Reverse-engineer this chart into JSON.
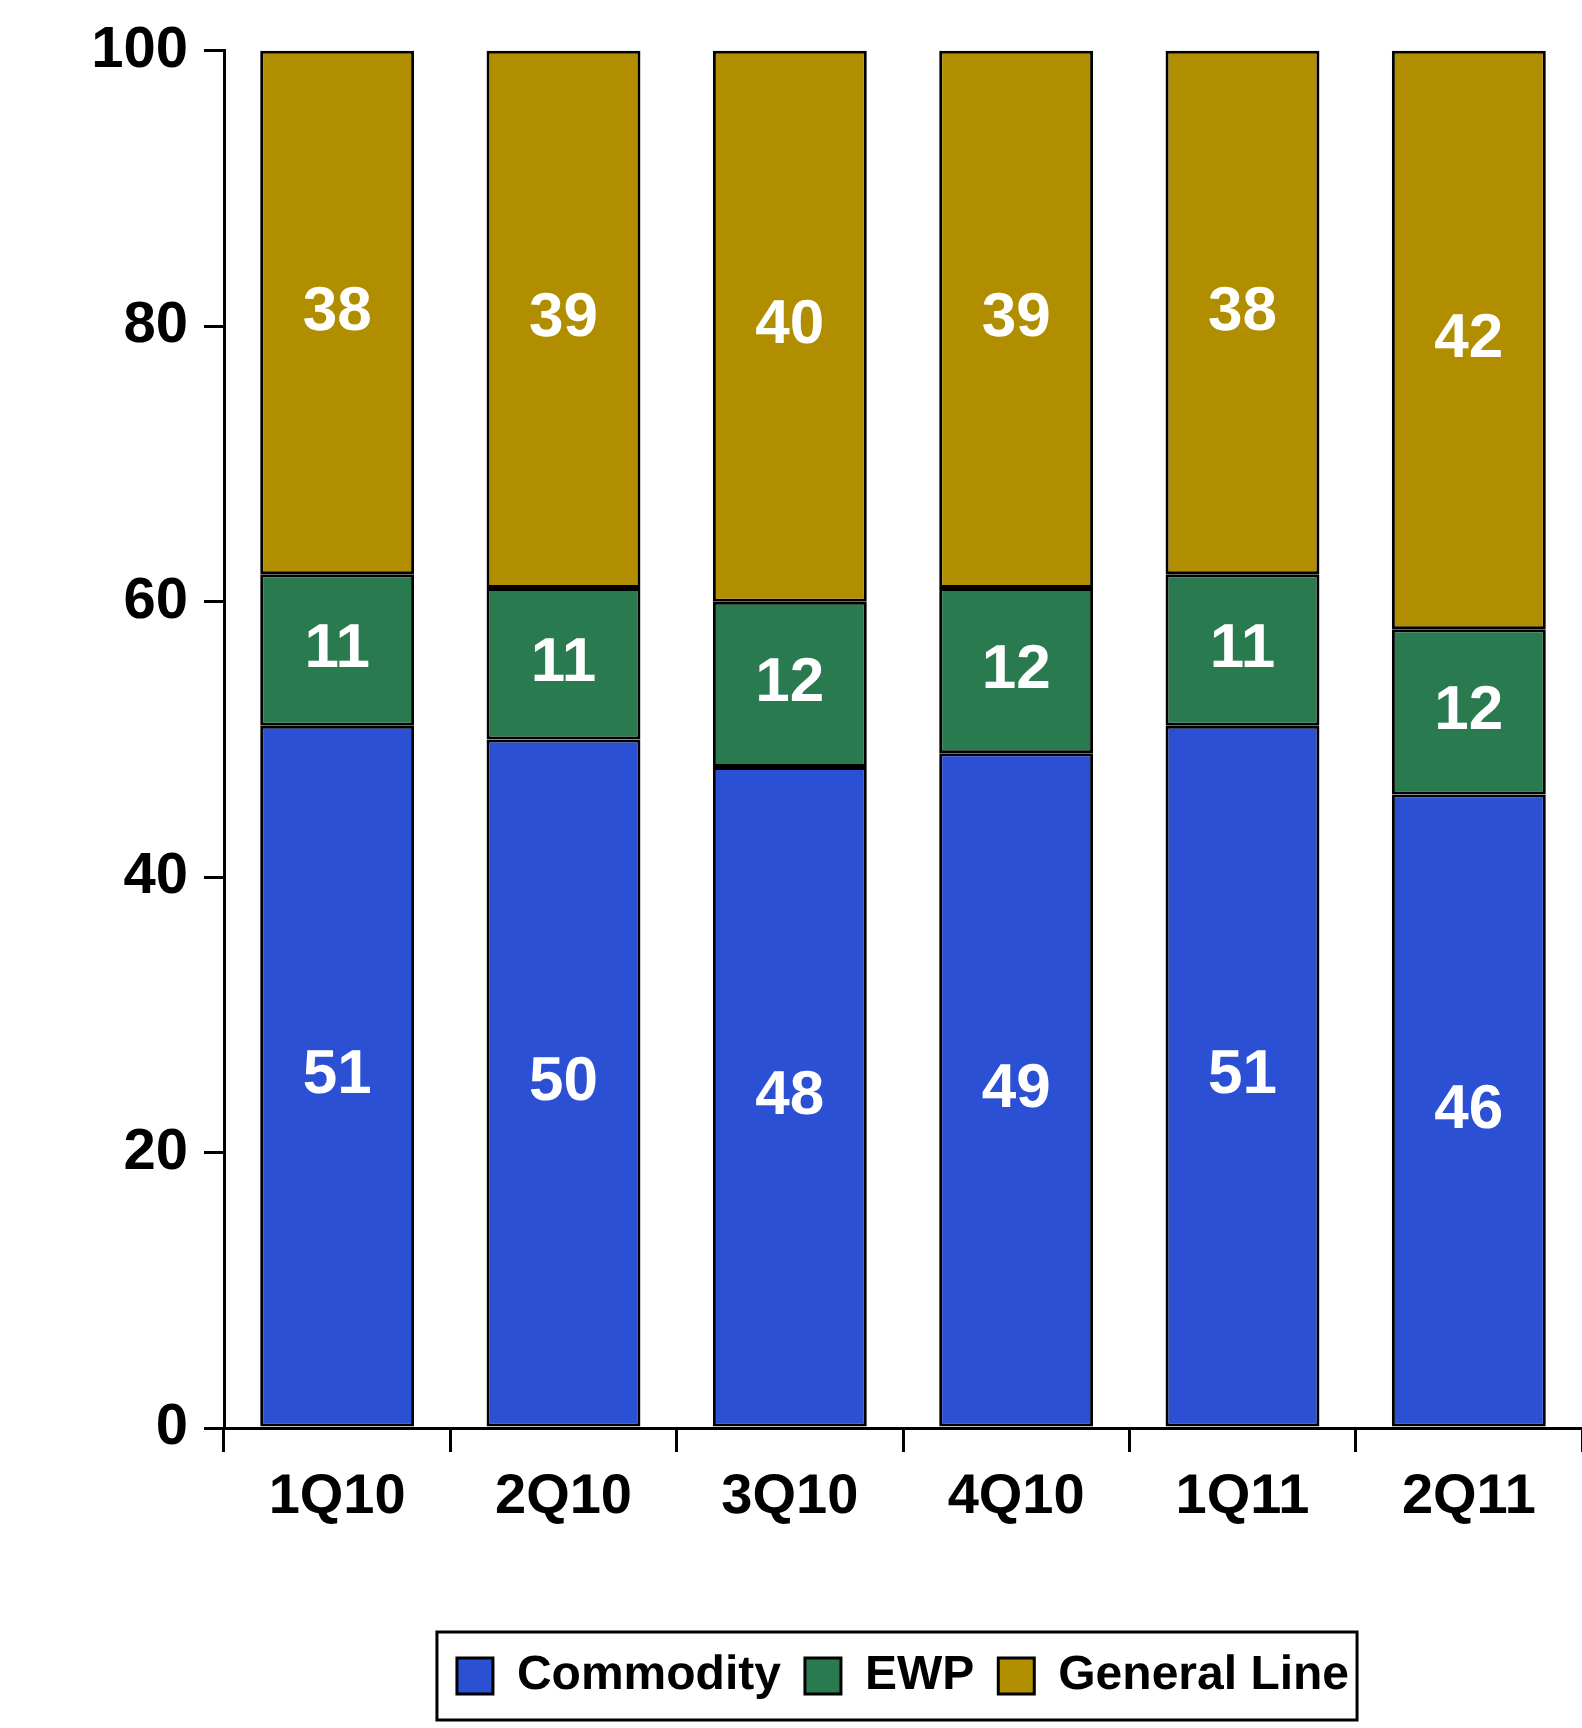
{
  "chart_data": {
    "type": "bar",
    "categories": [
      "1Q10",
      "2Q10",
      "3Q10",
      "4Q10",
      "1Q11",
      "2Q11"
    ],
    "series": [
      {
        "name": "Commodity",
        "color": "#2b50d4",
        "values": [
          51,
          50,
          48,
          49,
          51,
          46
        ]
      },
      {
        "name": "EWP",
        "color": "#2a7a50",
        "values": [
          11,
          11,
          12,
          12,
          11,
          12
        ]
      },
      {
        "name": "General Line",
        "color": "#b08e00",
        "values": [
          38,
          39,
          40,
          39,
          38,
          42
        ]
      }
    ],
    "stacked": true,
    "ylim": [
      0,
      100
    ],
    "yticks": [
      0,
      20,
      40,
      60,
      80,
      100
    ],
    "grid": false,
    "data_labels": true,
    "legend": "bottom"
  }
}
